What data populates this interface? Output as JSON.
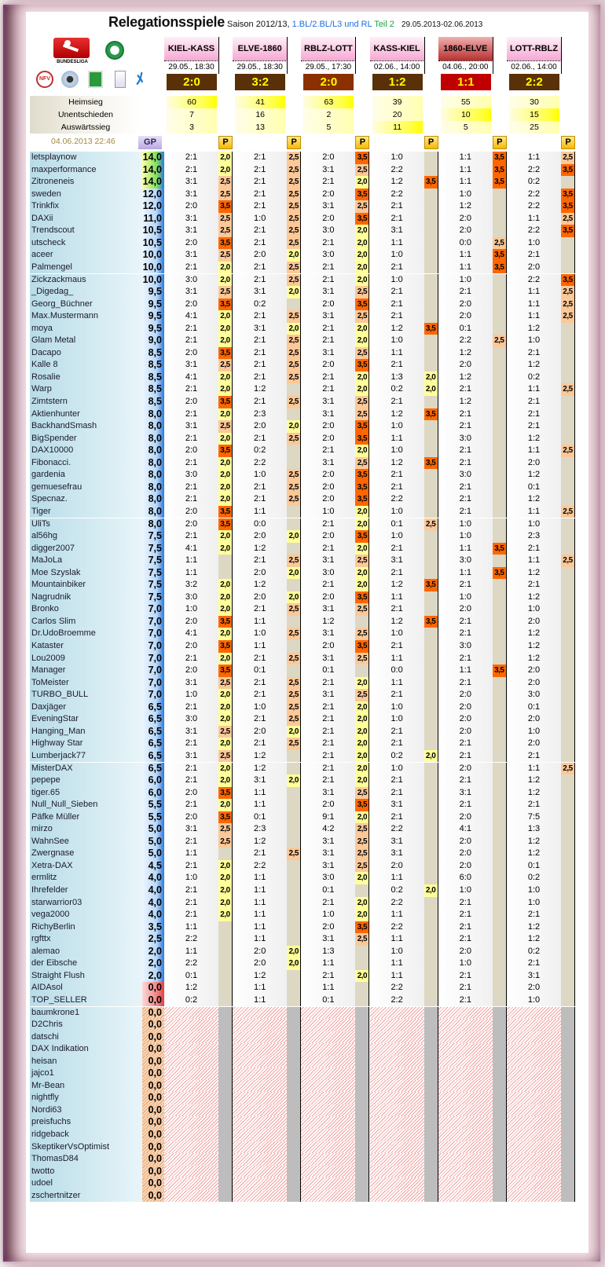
{
  "title": {
    "main": "Relegationsspiele",
    "season": "Saison 2012/13,",
    "leagues": "1.BL/2.BL/L3 und RL",
    "teil": "Teil 2",
    "range": "29.05.2013-02.06.2013"
  },
  "logos": {
    "bundesliga": "BUNDESLIGA",
    "nfv": "NFV"
  },
  "matches": [
    {
      "name": "KIEL-KASS",
      "date": "29.05., 18:30",
      "score": "2:0",
      "score_color": "#5a3008",
      "live": false,
      "stats": [
        "60",
        "7",
        "3"
      ],
      "max": 0
    },
    {
      "name": "ELVE-1860",
      "date": "29.05., 18:30",
      "score": "3:2",
      "score_color": "#5a3008",
      "live": false,
      "stats": [
        "41",
        "16",
        "13"
      ],
      "max": 0
    },
    {
      "name": "RBLZ-LOTT",
      "date": "29.05., 17:30",
      "score": "2:0",
      "score_color": "#8b3000",
      "live": false,
      "stats": [
        "63",
        "2",
        "5"
      ],
      "max": 0
    },
    {
      "name": "KASS-KIEL",
      "date": "02.06., 14:00",
      "score": "1:2",
      "score_color": "#5a3008",
      "live": false,
      "stats": [
        "39",
        "20",
        "11"
      ],
      "max": 2
    },
    {
      "name": "1860-ELVE",
      "date": "04.06., 20:00",
      "score": "1:1",
      "score_color": "#c00000",
      "live": true,
      "stats": [
        "55",
        "10",
        "5"
      ],
      "max": 1
    },
    {
      "name": "LOTT-RBLZ",
      "date": "02.06., 14:00",
      "score": "2:2",
      "score_color": "#5a3008",
      "live": false,
      "stats": [
        "30",
        "15",
        "25"
      ],
      "max": 1
    }
  ],
  "stat_labels": [
    "Heimsieg",
    "Unentschieden",
    "Auswärtssieg"
  ],
  "timestamp": "04.06.2013 22:46",
  "gp_label": "GP",
  "p_label": "P",
  "points_colors": {
    "2,0": "#ffff99",
    "2,5": "#fcc898",
    "3,5": "#ff6600"
  },
  "rows": [
    [
      "letsplaynow",
      "14,0",
      "2:1",
      "2,0",
      "2:1",
      "2,5",
      "2:0",
      "3,5",
      "1:0",
      "",
      "1:1",
      "3,5",
      "1:1",
      "2,5"
    ],
    [
      "maxperformance",
      "14,0",
      "2:1",
      "2,0",
      "2:1",
      "2,5",
      "3:1",
      "2,5",
      "2:2",
      "",
      "1:1",
      "3,5",
      "2:2",
      "3,5"
    ],
    [
      "Zitroneneis",
      "14,0",
      "3:1",
      "2,5",
      "2:1",
      "2,5",
      "2:1",
      "2,0",
      "1:2",
      "3,5",
      "1:1",
      "3,5",
      "0:2",
      ""
    ],
    [
      "sweden",
      "12,0",
      "3:1",
      "2,5",
      "2:1",
      "2,5",
      "2:0",
      "3,5",
      "2:2",
      "",
      "1:0",
      "",
      "2:2",
      "3,5"
    ],
    [
      "Trinkfix",
      "12,0",
      "2:0",
      "3,5",
      "2:1",
      "2,5",
      "3:1",
      "2,5",
      "2:1",
      "",
      "1:2",
      "",
      "2:2",
      "3,5"
    ],
    [
      "DAXii",
      "11,0",
      "3:1",
      "2,5",
      "1:0",
      "2,5",
      "2:0",
      "3,5",
      "2:1",
      "",
      "2:0",
      "",
      "1:1",
      "2,5"
    ],
    [
      "Trendscout",
      "10,5",
      "3:1",
      "2,5",
      "2:1",
      "2,5",
      "3:0",
      "2,0",
      "3:1",
      "",
      "2:0",
      "",
      "2:2",
      "3,5"
    ],
    [
      "utscheck",
      "10,5",
      "2:0",
      "3,5",
      "2:1",
      "2,5",
      "2:1",
      "2,0",
      "1:1",
      "",
      "0:0",
      "2,5",
      "1:0",
      ""
    ],
    [
      "aceer",
      "10,0",
      "3:1",
      "2,5",
      "2:0",
      "2,0",
      "3:0",
      "2,0",
      "1:0",
      "",
      "1:1",
      "3,5",
      "2:1",
      ""
    ],
    [
      "Palmengel",
      "10,0",
      "2:1",
      "2,0",
      "2:1",
      "2,5",
      "2:1",
      "2,0",
      "2:1",
      "",
      "1:1",
      "3,5",
      "2:0",
      ""
    ],
    [
      "Zickzackmaus",
      "10,0",
      "3:0",
      "2,0",
      "2:1",
      "2,5",
      "2:1",
      "2,0",
      "1:0",
      "",
      "1:0",
      "",
      "2:2",
      "3,5"
    ],
    [
      "_Digedag_",
      "9,5",
      "3:1",
      "2,5",
      "3:1",
      "2,0",
      "3:1",
      "2,5",
      "2:1",
      "",
      "2:1",
      "",
      "1:1",
      "2,5"
    ],
    [
      "Georg_Büchner",
      "9,5",
      "2:0",
      "3,5",
      "0:2",
      "",
      "2:0",
      "3,5",
      "2:1",
      "",
      "2:0",
      "",
      "1:1",
      "2,5"
    ],
    [
      "Max.Mustermann",
      "9,5",
      "4:1",
      "2,0",
      "2:1",
      "2,5",
      "3:1",
      "2,5",
      "2:1",
      "",
      "2:0",
      "",
      "1:1",
      "2,5"
    ],
    [
      "moya",
      "9,5",
      "2:1",
      "2,0",
      "3:1",
      "2,0",
      "2:1",
      "2,0",
      "1:2",
      "3,5",
      "0:1",
      "",
      "1:2",
      ""
    ],
    [
      "Glam Metal",
      "9,0",
      "2:1",
      "2,0",
      "2:1",
      "2,5",
      "2:1",
      "2,0",
      "1:0",
      "",
      "2:2",
      "2,5",
      "1:0",
      ""
    ],
    [
      "Dacapo",
      "8,5",
      "2:0",
      "3,5",
      "2:1",
      "2,5",
      "3:1",
      "2,5",
      "1:1",
      "",
      "1:2",
      "",
      "2:1",
      ""
    ],
    [
      "Kalle 8",
      "8,5",
      "3:1",
      "2,5",
      "2:1",
      "2,5",
      "2:0",
      "3,5",
      "2:1",
      "",
      "2:0",
      "",
      "1:2",
      ""
    ],
    [
      "Rosalie",
      "8,5",
      "4:1",
      "2,0",
      "2:1",
      "2,5",
      "2:1",
      "2,0",
      "1:3",
      "2,0",
      "1:2",
      "",
      "0:2",
      ""
    ],
    [
      "Warp",
      "8,5",
      "2:1",
      "2,0",
      "1:2",
      "",
      "2:1",
      "2,0",
      "0:2",
      "2,0",
      "2:1",
      "",
      "1:1",
      "2,5"
    ],
    [
      "Zimtstern",
      "8,5",
      "2:0",
      "3,5",
      "2:1",
      "2,5",
      "3:1",
      "2,5",
      "2:1",
      "",
      "1:2",
      "",
      "2:1",
      ""
    ],
    [
      "Aktienhunter",
      "8,0",
      "2:1",
      "2,0",
      "2:3",
      "",
      "3:1",
      "2,5",
      "1:2",
      "3,5",
      "2:1",
      "",
      "2:1",
      ""
    ],
    [
      "BackhandSmash",
      "8,0",
      "3:1",
      "2,5",
      "2:0",
      "2,0",
      "2:0",
      "3,5",
      "1:0",
      "",
      "2:1",
      "",
      "2:1",
      ""
    ],
    [
      "BigSpender",
      "8,0",
      "2:1",
      "2,0",
      "2:1",
      "2,5",
      "2:0",
      "3,5",
      "1:1",
      "",
      "3:0",
      "",
      "1:2",
      ""
    ],
    [
      "DAX10000",
      "8,0",
      "2:0",
      "3,5",
      "0:2",
      "",
      "2:1",
      "2,0",
      "1:0",
      "",
      "2:1",
      "",
      "1:1",
      "2,5"
    ],
    [
      "Fibonacci.",
      "8,0",
      "2:1",
      "2,0",
      "2:2",
      "",
      "3:1",
      "2,5",
      "1:2",
      "3,5",
      "2:1",
      "",
      "2:0",
      ""
    ],
    [
      "gardenia",
      "8,0",
      "3:0",
      "2,0",
      "1:0",
      "2,5",
      "2:0",
      "3,5",
      "2:1",
      "",
      "3:0",
      "",
      "1:2",
      ""
    ],
    [
      "gemuesefrau",
      "8,0",
      "2:1",
      "2,0",
      "2:1",
      "2,5",
      "2:0",
      "3,5",
      "2:1",
      "",
      "2:1",
      "",
      "0:1",
      ""
    ],
    [
      "Specnaz.",
      "8,0",
      "2:1",
      "2,0",
      "2:1",
      "2,5",
      "2:0",
      "3,5",
      "2:2",
      "",
      "2:1",
      "",
      "1:2",
      ""
    ],
    [
      "Tiger",
      "8,0",
      "2:0",
      "3,5",
      "1:1",
      "",
      "1:0",
      "2,0",
      "1:0",
      "",
      "2:1",
      "",
      "1:1",
      "2,5"
    ],
    [
      "UliTs",
      "8,0",
      "2:0",
      "3,5",
      "0:0",
      "",
      "2:1",
      "2,0",
      "0:1",
      "2,5",
      "1:0",
      "",
      "1:0",
      ""
    ],
    [
      "al56hg",
      "7,5",
      "2:1",
      "2,0",
      "2:0",
      "2,0",
      "2:0",
      "3,5",
      "1:0",
      "",
      "1:0",
      "",
      "2:3",
      ""
    ],
    [
      "digger2007",
      "7,5",
      "4:1",
      "2,0",
      "1:2",
      "",
      "2:1",
      "2,0",
      "2:1",
      "",
      "1:1",
      "3,5",
      "2:1",
      ""
    ],
    [
      "MaJoLa",
      "7,5",
      "1:1",
      "",
      "2:1",
      "2,5",
      "3:1",
      "2,5",
      "3:1",
      "",
      "3:0",
      "",
      "1:1",
      "2,5"
    ],
    [
      "Moe Szyslak",
      "7,5",
      "1:1",
      "",
      "2:0",
      "2,0",
      "3:0",
      "2,0",
      "2:1",
      "",
      "1:1",
      "3,5",
      "1:2",
      ""
    ],
    [
      "Mountainbiker",
      "7,5",
      "3:2",
      "2,0",
      "1:2",
      "",
      "2:1",
      "2,0",
      "1:2",
      "3,5",
      "2:1",
      "",
      "2:1",
      ""
    ],
    [
      "Nagrudnik",
      "7,5",
      "3:0",
      "2,0",
      "2:0",
      "2,0",
      "2:0",
      "3,5",
      "1:1",
      "",
      "1:0",
      "",
      "1:2",
      ""
    ],
    [
      "Bronko",
      "7,0",
      "1:0",
      "2,0",
      "2:1",
      "2,5",
      "3:1",
      "2,5",
      "2:1",
      "",
      "2:0",
      "",
      "1:0",
      ""
    ],
    [
      "Carlos Slim",
      "7,0",
      "2:0",
      "3,5",
      "1:1",
      "",
      "1:2",
      "",
      "1:2",
      "3,5",
      "2:1",
      "",
      "2:0",
      ""
    ],
    [
      "Dr.UdoBroemme",
      "7,0",
      "4:1",
      "2,0",
      "1:0",
      "2,5",
      "3:1",
      "2,5",
      "1:0",
      "",
      "2:1",
      "",
      "1:2",
      ""
    ],
    [
      "Kataster",
      "7,0",
      "2:0",
      "3,5",
      "1:1",
      "",
      "2:0",
      "3,5",
      "2:1",
      "",
      "3:0",
      "",
      "1:2",
      ""
    ],
    [
      "Lou2009",
      "7,0",
      "2:1",
      "2,0",
      "2:1",
      "2,5",
      "3:1",
      "2,5",
      "1:1",
      "",
      "2:1",
      "",
      "1:2",
      ""
    ],
    [
      "Manager",
      "7,0",
      "2:0",
      "3,5",
      "0:1",
      "",
      "0:1",
      "",
      "0:0",
      "",
      "1:1",
      "3,5",
      "2:0",
      ""
    ],
    [
      "ToMeister",
      "7,0",
      "3:1",
      "2,5",
      "2:1",
      "2,5",
      "2:1",
      "2,0",
      "1:1",
      "",
      "2:1",
      "",
      "2:0",
      ""
    ],
    [
      "TURBO_BULL",
      "7,0",
      "1:0",
      "2,0",
      "2:1",
      "2,5",
      "3:1",
      "2,5",
      "2:1",
      "",
      "2:0",
      "",
      "3:0",
      ""
    ],
    [
      "Daxjäger",
      "6,5",
      "2:1",
      "2,0",
      "1:0",
      "2,5",
      "2:1",
      "2,0",
      "1:0",
      "",
      "2:0",
      "",
      "0:1",
      ""
    ],
    [
      "EveningStar",
      "6,5",
      "3:0",
      "2,0",
      "2:1",
      "2,5",
      "2:1",
      "2,0",
      "1:0",
      "",
      "2:0",
      "",
      "2:0",
      ""
    ],
    [
      "Hanging_Man",
      "6,5",
      "3:1",
      "2,5",
      "2:0",
      "2,0",
      "2:1",
      "2,0",
      "2:1",
      "",
      "2:0",
      "",
      "1:0",
      ""
    ],
    [
      "Highway Star",
      "6,5",
      "2:1",
      "2,0",
      "2:1",
      "2,5",
      "2:1",
      "2,0",
      "2:1",
      "",
      "2:1",
      "",
      "2:0",
      ""
    ],
    [
      "Lumberjack77",
      "6,5",
      "3:1",
      "2,5",
      "1:2",
      "",
      "2:1",
      "2,0",
      "0:2",
      "2,0",
      "2:1",
      "",
      "2:1",
      ""
    ],
    [
      "MisterDAX",
      "6,5",
      "2:1",
      "2,0",
      "1:2",
      "",
      "2:1",
      "2,0",
      "1:0",
      "",
      "2:0",
      "",
      "1:1",
      "2,5"
    ],
    [
      "pepepe",
      "6,0",
      "2:1",
      "2,0",
      "3:1",
      "2,0",
      "2:1",
      "2,0",
      "2:1",
      "",
      "2:1",
      "",
      "1:2",
      ""
    ],
    [
      "tiger.65",
      "6,0",
      "2:0",
      "3,5",
      "1:1",
      "",
      "3:1",
      "2,5",
      "2:1",
      "",
      "3:1",
      "",
      "1:2",
      ""
    ],
    [
      "Null_Null_Sieben",
      "5,5",
      "2:1",
      "2,0",
      "1:1",
      "",
      "2:0",
      "3,5",
      "3:1",
      "",
      "2:1",
      "",
      "2:1",
      ""
    ],
    [
      "Päfke Müller",
      "5,5",
      "2:0",
      "3,5",
      "0:1",
      "",
      "9:1",
      "2,0",
      "2:1",
      "",
      "2:0",
      "",
      "7:5",
      ""
    ],
    [
      "mirzo",
      "5,0",
      "3:1",
      "2,5",
      "2:3",
      "",
      "4:2",
      "2,5",
      "2:2",
      "",
      "4:1",
      "",
      "1:3",
      ""
    ],
    [
      "WahnSee",
      "5,0",
      "2:1",
      "2,5",
      "1:2",
      "",
      "3:1",
      "2,5",
      "3:1",
      "",
      "2:0",
      "",
      "1:2",
      ""
    ],
    [
      "Zwergnase",
      "5,0",
      "1:1",
      "",
      "2:1",
      "2,5",
      "3:1",
      "2,5",
      "3:1",
      "",
      "2:0",
      "",
      "1:2",
      ""
    ],
    [
      "Xetra-DAX",
      "4,5",
      "2:1",
      "2,0",
      "2:2",
      "",
      "3:1",
      "2,5",
      "2:0",
      "",
      "2:0",
      "",
      "0:1",
      ""
    ],
    [
      "ermlitz",
      "4,0",
      "1:0",
      "2,0",
      "1:1",
      "",
      "3:0",
      "2,0",
      "1:1",
      "",
      "6:0",
      "",
      "0:2",
      ""
    ],
    [
      "Ihrefelder",
      "4,0",
      "2:1",
      "2,0",
      "1:1",
      "",
      "0:1",
      "",
      "0:2",
      "2,0",
      "1:0",
      "",
      "1:0",
      ""
    ],
    [
      "starwarrior03",
      "4,0",
      "2:1",
      "2,0",
      "1:1",
      "",
      "2:1",
      "2,0",
      "2:2",
      "",
      "2:1",
      "",
      "1:0",
      ""
    ],
    [
      "vega2000",
      "4,0",
      "2:1",
      "2,0",
      "1:1",
      "",
      "1:0",
      "2,0",
      "1:1",
      "",
      "2:1",
      "",
      "2:1",
      ""
    ],
    [
      "RichyBerlin",
      "3,5",
      "1:1",
      "",
      "1:1",
      "",
      "2:0",
      "3,5",
      "2:2",
      "",
      "2:1",
      "",
      "1:2",
      ""
    ],
    [
      "rgfttx",
      "2,5",
      "2:2",
      "",
      "1:1",
      "",
      "3:1",
      "2,5",
      "1:1",
      "",
      "2:1",
      "",
      "1:2",
      ""
    ],
    [
      "alemao",
      "2,0",
      "1:1",
      "",
      "2:0",
      "2,0",
      "1:3",
      "",
      "1:0",
      "",
      "2:0",
      "",
      "0:2",
      ""
    ],
    [
      "der Eibsche",
      "2,0",
      "2:2",
      "",
      "2:0",
      "2,0",
      "1:1",
      "",
      "1:1",
      "",
      "1:0",
      "",
      "2:1",
      ""
    ],
    [
      "Straight Flush",
      "2,0",
      "0:1",
      "",
      "1:2",
      "",
      "2:1",
      "2,0",
      "1:1",
      "",
      "2:1",
      "",
      "3:1",
      ""
    ],
    [
      "AIDAsol",
      "0,0",
      "1:2",
      "",
      "1:1",
      "",
      "1:1",
      "",
      "2:2",
      "",
      "2:1",
      "",
      "2:0",
      ""
    ],
    [
      "TOP_SELLER",
      "0,0",
      "0:2",
      "",
      "1:1",
      "",
      "0:1",
      "",
      "2:2",
      "",
      "2:1",
      "",
      "1:0",
      ""
    ],
    [
      "baumkrone1",
      "0,0"
    ],
    [
      "D2Chris",
      "0,0"
    ],
    [
      "datschi",
      "0,0"
    ],
    [
      "DAX Indikation",
      "0,0"
    ],
    [
      "heisan",
      "0,0"
    ],
    [
      "jajco1",
      "0,0"
    ],
    [
      "Mr-Bean",
      "0,0"
    ],
    [
      "nightfly",
      "0,0"
    ],
    [
      "Nordi63",
      "0,0"
    ],
    [
      "preisfuchs",
      "0,0"
    ],
    [
      "ridgeback",
      "0,0"
    ],
    [
      "SkeptikerVsOptimist",
      "0,0"
    ],
    [
      "ThomasD84",
      "0,0"
    ],
    [
      "twotto",
      "0,0"
    ],
    [
      "udoel",
      "0,0"
    ],
    [
      "zschertnitzer",
      "0,0"
    ]
  ]
}
